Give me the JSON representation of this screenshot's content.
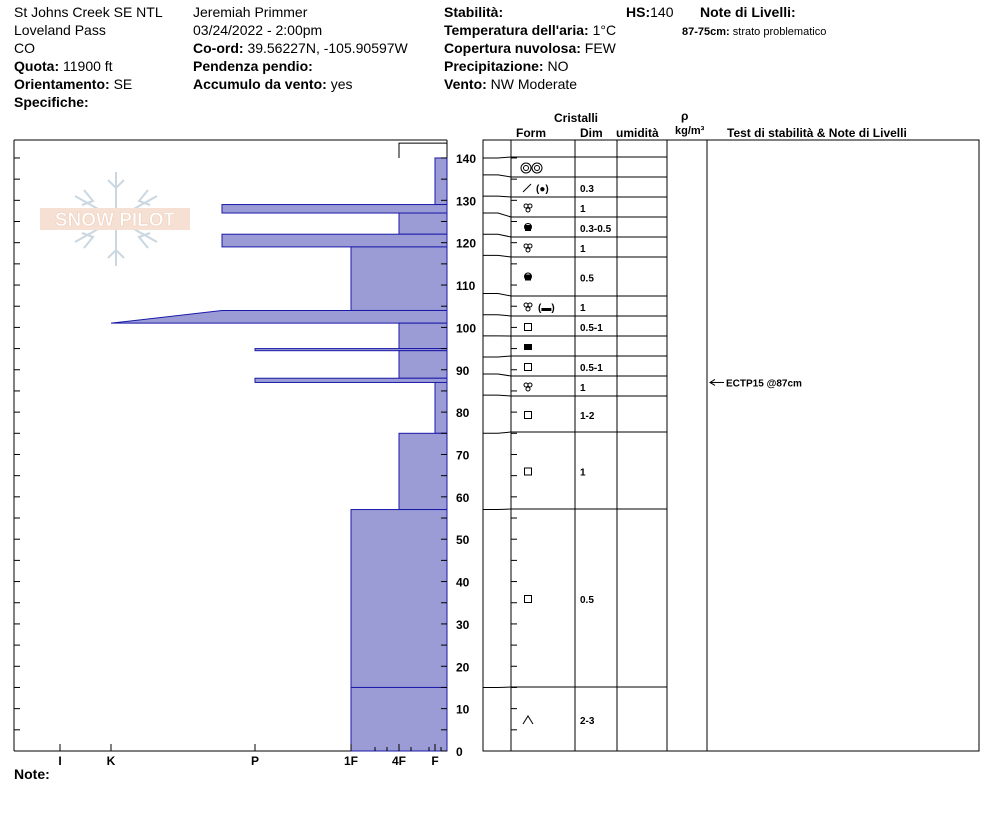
{
  "header": {
    "location": "St Johns Creek SE NTL",
    "area": "Loveland Pass",
    "state": "CO",
    "elevation_label": "Quota:",
    "elevation": "11900 ft",
    "aspect_label": "Orientamento:",
    "aspect": "SE",
    "specifics_label": "Specifiche:",
    "observer": "Jeremiah Primmer",
    "datetime": "03/24/2022 - 2:00pm",
    "coord_label": "Co-ord:",
    "coord": "39.56227N, -105.90597W",
    "slope_label": "Pendenza pendio:",
    "wind_loading_label": "Accumulo da vento:",
    "wind_loading": "yes",
    "stability_label": "Stabilità:",
    "air_temp_label": "Temperatura dell'aria:",
    "air_temp": "1°C",
    "cloud_label": "Copertura nuvolosa:",
    "cloud": "FEW",
    "precip_label": "Precipitazione:",
    "precip": "NO",
    "wind_label": "Vento:",
    "wind": "NW Moderate",
    "hs_label": "HS:",
    "hs": "140",
    "layer_notes_label": "Note di Livelli:",
    "layer_note_range": "87-75cm:",
    "layer_note_text": "strato problematico"
  },
  "columns": {
    "crystals": "Cristalli",
    "form": "Form",
    "size": "Dim",
    "moisture": "umidità",
    "rho": "ρ",
    "density": "kg/m³",
    "tests": "Test di stabilità & Note di Livelli"
  },
  "footer": {
    "note_label": "Note:"
  },
  "logo_text": "SNOW PILOT",
  "chart_data": {
    "type": "bar",
    "orientation": "horizontal",
    "y_label": "",
    "ylim": [
      0,
      145
    ],
    "y_ticks": [
      0,
      10,
      20,
      30,
      40,
      50,
      60,
      70,
      80,
      90,
      100,
      110,
      120,
      130,
      140
    ],
    "hardness_scale": [
      "I",
      "K",
      "P",
      "1F",
      "4F",
      "F"
    ],
    "hardness_values": {
      "F": 1,
      "4F": 2,
      "1F": 3,
      "P": 5,
      "K": 7,
      "I": 8
    },
    "profile": [
      {
        "bottom": 129,
        "top": 140,
        "hardness": 1
      },
      {
        "bottom": 127,
        "top": 129,
        "hardness": 4.5
      },
      {
        "bottom": 122,
        "top": 127,
        "hardness": 2
      },
      {
        "bottom": 119,
        "top": 122,
        "hardness": 4.5
      },
      {
        "bottom": 104,
        "top": 119,
        "hardness": 3
      },
      {
        "bottom": 101,
        "top": 104,
        "hardness": [
          4.5,
          7
        ]
      },
      {
        "bottom": 95,
        "top": 101,
        "hardness": 2
      },
      {
        "bottom": 94.5,
        "top": 95,
        "hardness": 5
      },
      {
        "bottom": 88,
        "top": 94.5,
        "hardness": 2
      },
      {
        "bottom": 87,
        "top": 88,
        "hardness": 5
      },
      {
        "bottom": 75,
        "top": 87,
        "hardness": 1
      },
      {
        "bottom": 57,
        "top": 75,
        "hardness": 2
      },
      {
        "bottom": 15,
        "top": 57,
        "hardness": 3
      },
      {
        "bottom": 0,
        "top": 15,
        "hardness": 3
      }
    ],
    "layers": [
      {
        "top": 140,
        "bottom": 136,
        "form": "round-grains-icon",
        "size": ""
      },
      {
        "top": 136,
        "bottom": 131,
        "form": "fragments-icon",
        "size": "0.3"
      },
      {
        "top": 131,
        "bottom": 127,
        "form": "rounding-faceted-icon",
        "size": "1"
      },
      {
        "top": 127,
        "bottom": 122,
        "form": "melt-form-icon",
        "size": "0.3-0.5"
      },
      {
        "top": 122,
        "bottom": 117,
        "form": "rounding-faceted-icon",
        "size": "1"
      },
      {
        "top": 117,
        "bottom": 108,
        "form": "melt-form-icon",
        "size": "0.5"
      },
      {
        "top": 108,
        "bottom": 103,
        "form": "rounding-faceted-icon",
        "size": "1"
      },
      {
        "top": 103,
        "bottom": 98,
        "form": "faceted-icon",
        "size": "0.5-1"
      },
      {
        "top": 98,
        "bottom": 93,
        "form": "crust-icon",
        "size": ""
      },
      {
        "top": 93,
        "bottom": 89,
        "form": "faceted-icon",
        "size": "0.5-1"
      },
      {
        "top": 89,
        "bottom": 84,
        "form": "rounding-faceted-icon",
        "size": "1"
      },
      {
        "top": 84,
        "bottom": 75,
        "form": "faceted-icon",
        "size": "1-2"
      },
      {
        "top": 75,
        "bottom": 57,
        "form": "faceted-icon",
        "size": "1"
      },
      {
        "top": 57,
        "bottom": 15,
        "form": "faceted-icon",
        "size": "0.5"
      },
      {
        "top": 15,
        "bottom": 0,
        "form": "depth-hoar-icon",
        "size": "2-3"
      }
    ],
    "tests": [
      {
        "depth": 87,
        "label": "ECTP15 @87cm"
      }
    ]
  }
}
